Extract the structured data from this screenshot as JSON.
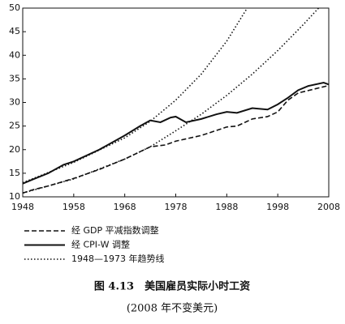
{
  "chart_data": {
    "type": "line",
    "title": "图 4.13　美国雇员实际小时工资",
    "subtitle": "(2008 年不变美元)",
    "xlim": [
      1948,
      2008
    ],
    "xticks": [
      1948,
      1958,
      1968,
      1978,
      1988,
      1998,
      2008
    ],
    "ylim": [
      10,
      50
    ],
    "yticks": [
      10,
      15,
      20,
      25,
      30,
      35,
      40,
      45,
      50
    ],
    "series": [
      {
        "name": "经 GDP 平减指数调整",
        "color": "#111111",
        "style": "dashed",
        "x": [
          1948,
          1950,
          1953,
          1958,
          1963,
          1968,
          1973,
          1976,
          1978,
          1983,
          1988,
          1990,
          1993,
          1996,
          1998,
          2000,
          2002,
          2005,
          2008
        ],
        "values": [
          10.8,
          11.5,
          12.3,
          13.9,
          15.8,
          18.0,
          20.6,
          21.0,
          21.8,
          23.0,
          24.8,
          25.0,
          26.5,
          27.0,
          28.0,
          30.5,
          32.0,
          32.8,
          33.6
        ]
      },
      {
        "name": "经 CPI-W 调整",
        "color": "#111111",
        "style": "solid",
        "x": [
          1948,
          1950,
          1953,
          1956,
          1958,
          1963,
          1968,
          1971,
          1973,
          1975,
          1977,
          1978,
          1980,
          1983,
          1986,
          1988,
          1990,
          1993,
          1996,
          1998,
          2000,
          2002,
          2004,
          2007,
          2008
        ],
        "values": [
          12.8,
          13.7,
          15.0,
          16.8,
          17.5,
          20.0,
          23.0,
          25.0,
          26.2,
          25.8,
          26.8,
          27.0,
          25.8,
          26.5,
          27.5,
          28.0,
          27.8,
          28.8,
          28.5,
          29.6,
          31.0,
          32.6,
          33.5,
          34.2,
          33.8
        ]
      },
      {
        "name": "1948—1973 年趋势线",
        "color": "#111111",
        "style": "dotted",
        "x": [
          1948,
          1958,
          1968,
          1973,
          1978,
          1983,
          1988,
          1990,
          1992
        ],
        "values": [
          13.0,
          17.3,
          22.5,
          26.0,
          30.5,
          36.0,
          43.0,
          46.5,
          50.0
        ]
      },
      {
        "color": "#111111",
        "style": "dotted",
        "x": [
          1948,
          1958,
          1968,
          1973,
          1978,
          1983,
          1988,
          1993,
          1998,
          2003,
          2006
        ],
        "values": [
          10.8,
          13.8,
          18.0,
          20.6,
          24.0,
          27.5,
          31.5,
          36.0,
          41.0,
          46.5,
          50.0
        ]
      }
    ]
  }
}
